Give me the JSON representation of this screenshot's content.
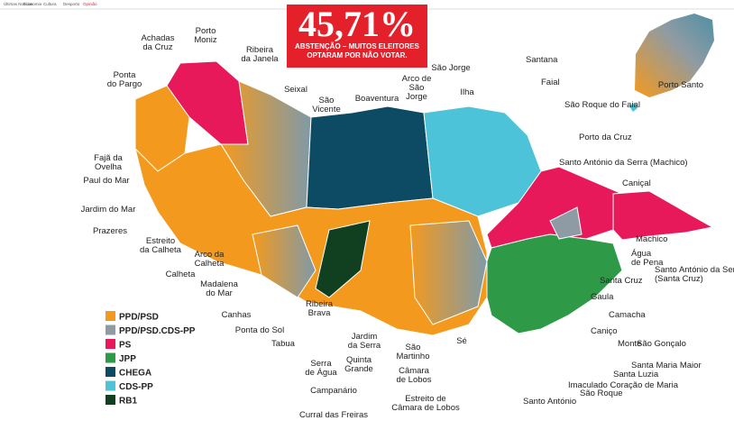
{
  "nav": [
    "Últimas Notícias",
    "Economia",
    "Cultura",
    "Desporto",
    "Opinião"
  ],
  "header": {
    "figure": "45,71%",
    "lines": [
      "ABSTENÇÃO – MUITOS ELEITORES",
      "OPTARAM POR NÃO VOTAR."
    ]
  },
  "legend": [
    {
      "label": "PPD/PSD",
      "color": "#f39a1e"
    },
    {
      "label": "PPD/PSD.CDS-PP",
      "color": "#8e9ba4"
    },
    {
      "label": "PS",
      "color": "#e8195a"
    },
    {
      "label": "JPP",
      "color": "#2e9a47"
    },
    {
      "label": "CHEGA",
      "color": "#0d4a63"
    },
    {
      "label": "CDS-PP",
      "color": "#4cc3d9"
    },
    {
      "label": "RB1",
      "color": "#10401f"
    }
  ],
  "labels": [
    {
      "lines": [
        "Achadas",
        "da Cruz"
      ]
    },
    {
      "lines": [
        "Porto",
        "Moniz"
      ]
    },
    {
      "lines": [
        "Ribeira",
        "da Janela"
      ]
    },
    {
      "lines": [
        "Ponta",
        "do Pargo"
      ]
    },
    {
      "lines": [
        "Seixal"
      ]
    },
    {
      "lines": [
        "São",
        "Vicente"
      ]
    },
    {
      "lines": [
        "Boaventura"
      ]
    },
    {
      "lines": [
        "Arco de",
        "São",
        "Jorge"
      ]
    },
    {
      "lines": [
        "São Jorge"
      ]
    },
    {
      "lines": [
        "Ilha"
      ]
    },
    {
      "lines": [
        "Santana"
      ]
    },
    {
      "lines": [
        "Faial"
      ]
    },
    {
      "lines": [
        "Porto Santo"
      ]
    },
    {
      "lines": [
        "São Roque do Faial"
      ]
    },
    {
      "lines": [
        "Porto da Cruz"
      ]
    },
    {
      "lines": [
        "Santo António da Serra (Machico)"
      ]
    },
    {
      "lines": [
        "Caniçal"
      ]
    },
    {
      "lines": [
        "Fajã da",
        "Ovelha"
      ]
    },
    {
      "lines": [
        "Paul do Mar"
      ]
    },
    {
      "lines": [
        "Jardim do Mar"
      ]
    },
    {
      "lines": [
        "Prazeres"
      ]
    },
    {
      "lines": [
        "Estreito",
        "da Calheta"
      ]
    },
    {
      "lines": [
        "Arco da",
        "Calheta"
      ]
    },
    {
      "lines": [
        "Calheta"
      ]
    },
    {
      "lines": [
        "Machico"
      ]
    },
    {
      "lines": [
        "Água",
        "de Pena"
      ]
    },
    {
      "lines": [
        "Santa Cruz"
      ]
    },
    {
      "lines": [
        "Santo António da Serra",
        "(Santa Cruz)"
      ]
    },
    {
      "lines": [
        "Gaula"
      ]
    },
    {
      "lines": [
        "Camacha"
      ]
    },
    {
      "lines": [
        "Madalena",
        "do Mar"
      ]
    },
    {
      "lines": [
        "Canhas"
      ]
    },
    {
      "lines": [
        "Ponta do Sol"
      ]
    },
    {
      "lines": [
        "Ribeira",
        "Brava"
      ]
    },
    {
      "lines": [
        "Tabua"
      ]
    },
    {
      "lines": [
        "Jardim",
        "da Serra"
      ]
    },
    {
      "lines": [
        "Serra",
        "de Água"
      ]
    },
    {
      "lines": [
        "Quinta",
        "Grande"
      ]
    },
    {
      "lines": [
        "São",
        "Martinho"
      ]
    },
    {
      "lines": [
        "Sé"
      ]
    },
    {
      "lines": [
        "Caniço"
      ]
    },
    {
      "lines": [
        "Monte"
      ]
    },
    {
      "lines": [
        "São Gonçalo"
      ]
    },
    {
      "lines": [
        "Santa Maria Maior"
      ]
    },
    {
      "lines": [
        "Santa Luzia"
      ]
    },
    {
      "lines": [
        "Câmara",
        "de Lobos"
      ]
    },
    {
      "lines": [
        "Imaculado Coração de Maria"
      ]
    },
    {
      "lines": [
        "Campanário"
      ]
    },
    {
      "lines": [
        "São Roque"
      ]
    },
    {
      "lines": [
        "Estreito de",
        "Câmara de Lobos"
      ]
    },
    {
      "lines": [
        "Santo António"
      ]
    },
    {
      "lines": [
        "Curral das Freiras"
      ]
    }
  ]
}
